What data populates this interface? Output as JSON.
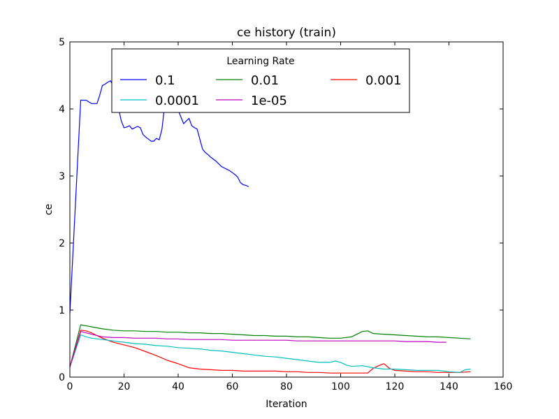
{
  "chart_data": {
    "type": "line",
    "title": "ce history (train)",
    "xlabel": "Iteration",
    "ylabel": "ce",
    "xlim": [
      0,
      160
    ],
    "ylim": [
      0,
      5
    ],
    "xticks": [
      0,
      20,
      40,
      60,
      80,
      100,
      120,
      140,
      160
    ],
    "yticks": [
      0,
      1,
      2,
      3,
      4,
      5
    ],
    "grid": false,
    "legend": {
      "title": "Learning Rate",
      "placement": "upper-center",
      "columns": 3
    },
    "series": [
      {
        "name": "0.1",
        "color": "#0000ff",
        "x": [
          0,
          4,
          6,
          8,
          10,
          11,
          12,
          13,
          14,
          15,
          16,
          17,
          18,
          19,
          20,
          21,
          22,
          23,
          24,
          25,
          26,
          27,
          28,
          29,
          30,
          31,
          32,
          33,
          34,
          35,
          36,
          37,
          38,
          39,
          40,
          41,
          42,
          43,
          44,
          45,
          46,
          47,
          48,
          49,
          50,
          51,
          52,
          53,
          54,
          55,
          56,
          57,
          58,
          59,
          60,
          61,
          62,
          63,
          64,
          65,
          66
        ],
        "y": [
          0.95,
          4.13,
          4.13,
          4.08,
          4.08,
          4.2,
          4.35,
          4.37,
          4.4,
          4.42,
          4.35,
          4.2,
          4.0,
          3.82,
          3.72,
          3.73,
          3.75,
          3.7,
          3.72,
          3.74,
          3.72,
          3.62,
          3.58,
          3.55,
          3.52,
          3.52,
          3.56,
          3.54,
          3.7,
          4.05,
          4.3,
          4.2,
          4.12,
          4.05,
          3.98,
          3.88,
          3.78,
          3.82,
          3.86,
          3.75,
          3.72,
          3.7,
          3.55,
          3.4,
          3.35,
          3.32,
          3.28,
          3.25,
          3.22,
          3.18,
          3.14,
          3.12,
          3.1,
          3.08,
          3.05,
          3.02,
          2.98,
          2.9,
          2.87,
          2.86,
          2.84
        ]
      },
      {
        "name": "0.01",
        "color": "#008000",
        "x": [
          0,
          4,
          8,
          12,
          16,
          20,
          24,
          28,
          32,
          36,
          40,
          44,
          48,
          52,
          56,
          60,
          64,
          68,
          72,
          76,
          80,
          84,
          88,
          92,
          96,
          100,
          104,
          106,
          108,
          110,
          112,
          116,
          120,
          124,
          128,
          132,
          136,
          140,
          144,
          148
        ],
        "y": [
          0.15,
          0.78,
          0.75,
          0.72,
          0.7,
          0.69,
          0.69,
          0.68,
          0.68,
          0.67,
          0.67,
          0.66,
          0.66,
          0.65,
          0.65,
          0.64,
          0.63,
          0.62,
          0.62,
          0.61,
          0.61,
          0.6,
          0.6,
          0.59,
          0.58,
          0.58,
          0.6,
          0.64,
          0.68,
          0.69,
          0.65,
          0.64,
          0.63,
          0.62,
          0.61,
          0.6,
          0.6,
          0.59,
          0.58,
          0.57
        ]
      },
      {
        "name": "0.001",
        "color": "#ff0000",
        "x": [
          0,
          4,
          6,
          8,
          12,
          16,
          20,
          24,
          28,
          32,
          36,
          40,
          44,
          48,
          52,
          56,
          60,
          64,
          68,
          72,
          76,
          80,
          84,
          88,
          92,
          96,
          100,
          104,
          108,
          110,
          112,
          114,
          116,
          118,
          120,
          124,
          128,
          132,
          136,
          140,
          144,
          148
        ],
        "y": [
          0.15,
          0.7,
          0.69,
          0.66,
          0.58,
          0.52,
          0.48,
          0.44,
          0.38,
          0.32,
          0.25,
          0.2,
          0.14,
          0.12,
          0.11,
          0.1,
          0.1,
          0.09,
          0.09,
          0.09,
          0.09,
          0.08,
          0.08,
          0.07,
          0.07,
          0.06,
          0.06,
          0.06,
          0.06,
          0.06,
          0.13,
          0.17,
          0.2,
          0.13,
          0.1,
          0.09,
          0.08,
          0.08,
          0.07,
          0.07,
          0.07,
          0.08
        ]
      },
      {
        "name": "0.0001",
        "color": "#00bfbf",
        "x": [
          0,
          4,
          6,
          8,
          12,
          16,
          20,
          24,
          28,
          32,
          36,
          40,
          44,
          48,
          52,
          56,
          60,
          64,
          68,
          72,
          76,
          80,
          84,
          88,
          92,
          96,
          98,
          100,
          102,
          104,
          108,
          112,
          116,
          120,
          124,
          128,
          132,
          136,
          140,
          144,
          146,
          148
        ],
        "y": [
          0.15,
          0.63,
          0.6,
          0.58,
          0.56,
          0.54,
          0.52,
          0.5,
          0.49,
          0.47,
          0.46,
          0.44,
          0.43,
          0.42,
          0.4,
          0.39,
          0.37,
          0.35,
          0.33,
          0.31,
          0.3,
          0.28,
          0.26,
          0.24,
          0.22,
          0.22,
          0.24,
          0.22,
          0.18,
          0.16,
          0.17,
          0.14,
          0.12,
          0.12,
          0.11,
          0.1,
          0.1,
          0.1,
          0.08,
          0.07,
          0.11,
          0.12
        ]
      },
      {
        "name": "1e-05",
        "color": "#bf00bf",
        "x": [
          0,
          4,
          8,
          12,
          16,
          20,
          24,
          28,
          32,
          36,
          40,
          44,
          48,
          52,
          56,
          60,
          64,
          68,
          72,
          76,
          80,
          84,
          88,
          92,
          96,
          100,
          104,
          108,
          112,
          116,
          120,
          124,
          128,
          132,
          136,
          139
        ],
        "y": [
          0.15,
          0.68,
          0.64,
          0.6,
          0.59,
          0.59,
          0.58,
          0.58,
          0.58,
          0.57,
          0.57,
          0.56,
          0.56,
          0.56,
          0.56,
          0.55,
          0.55,
          0.55,
          0.55,
          0.55,
          0.55,
          0.54,
          0.54,
          0.54,
          0.54,
          0.54,
          0.54,
          0.54,
          0.54,
          0.54,
          0.54,
          0.53,
          0.53,
          0.53,
          0.52,
          0.52
        ]
      }
    ]
  }
}
